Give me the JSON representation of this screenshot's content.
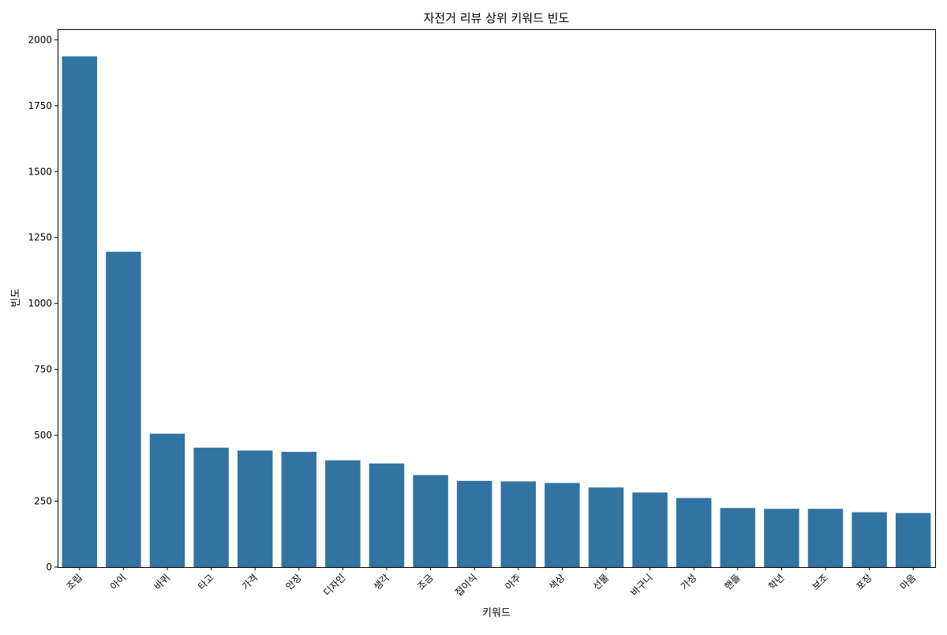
{
  "chart_data": {
    "type": "bar",
    "title": "자전거 리뷰 상위 키워드 빈도",
    "xlabel": "키워드",
    "ylabel": "빈도",
    "categories": [
      "조립",
      "아이",
      "바퀴",
      "타고",
      "가격",
      "안장",
      "디자인",
      "생각",
      "조금",
      "접이식",
      "아주",
      "색상",
      "선물",
      "바구니",
      "가성",
      "핸들",
      "학년",
      "보조",
      "포장",
      "마음"
    ],
    "values": [
      1937,
      1196,
      506,
      453,
      442,
      437,
      405,
      393,
      349,
      327,
      325,
      319,
      302,
      283,
      262,
      224,
      221,
      221,
      208,
      205
    ],
    "ylim": [
      0,
      2040
    ],
    "yticks": [
      0,
      250,
      500,
      750,
      1000,
      1250,
      1500,
      1750,
      2000
    ],
    "grid": false,
    "bar_color": "#3274a1"
  }
}
